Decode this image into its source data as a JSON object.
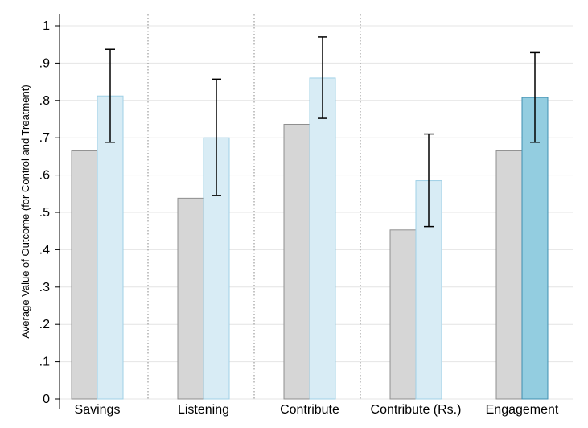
{
  "chart_data": {
    "type": "bar",
    "title": "",
    "xlabel": "",
    "ylabel": "Average Value of Outcome (for Control and Treatment)",
    "ylim": [
      0,
      1
    ],
    "yticks": [
      "0",
      ".1",
      ".2",
      ".3",
      ".4",
      ".5",
      ".6",
      ".7",
      ".8",
      ".9",
      "1"
    ],
    "grid": true,
    "legend": "none",
    "categories": [
      "Savings",
      "Listening",
      "Contribute",
      "Contribute (Rs.)",
      "Engagement"
    ],
    "series": [
      {
        "values": [
          0.665,
          0.538,
          0.736,
          0.453,
          0.665
        ],
        "color": "#d6d6d6"
      },
      {
        "values": [
          0.812,
          0.7,
          0.86,
          0.585,
          0.808
        ],
        "colors": [
          "#d8ecf5",
          "#d8ecf5",
          "#d8ecf5",
          "#d8ecf5",
          "#93cde0"
        ],
        "error_low": [
          0.688,
          0.545,
          0.752,
          0.462,
          0.688
        ],
        "error_high": [
          0.937,
          0.857,
          0.97,
          0.71,
          0.928
        ]
      }
    ]
  }
}
